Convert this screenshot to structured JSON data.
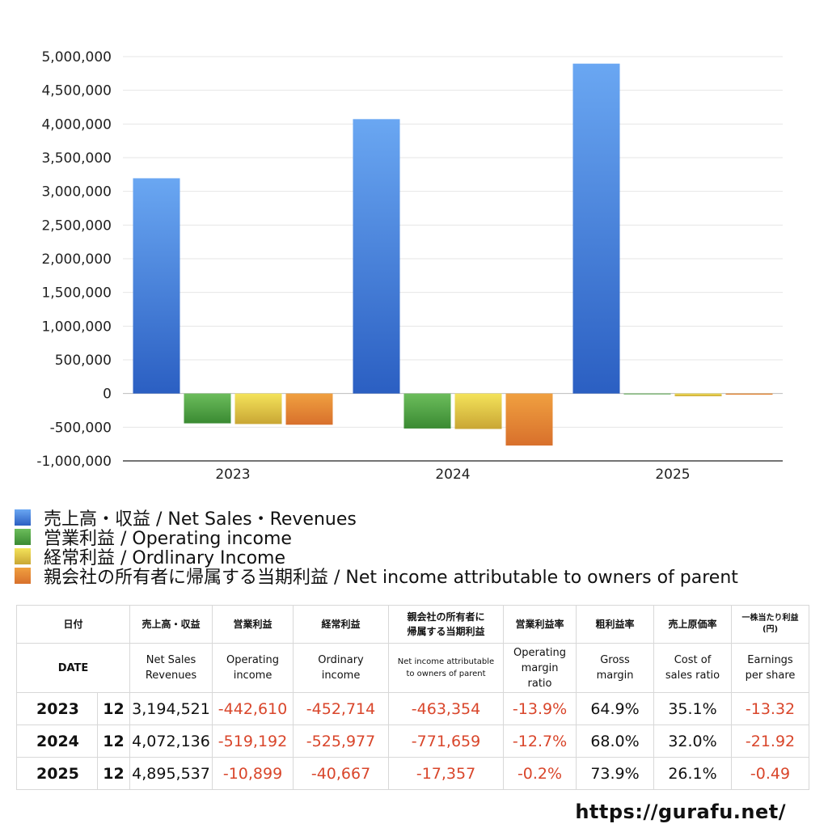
{
  "chart_data": {
    "type": "bar",
    "categories": [
      "2023",
      "2024",
      "2025"
    ],
    "series": [
      {
        "name": "売上高・収益 / Net Sales・Revenues",
        "values": [
          3194521,
          4072136,
          4895537
        ],
        "color_top": "#6aa7f2",
        "color_bottom": "#2b5fc2"
      },
      {
        "name": "営業利益 / Operating income",
        "values": [
          -442610,
          -519192,
          -10899
        ],
        "color_top": "#6cbd5c",
        "color_bottom": "#3a8a32"
      },
      {
        "name": "経常利益 / Ordlinary Income",
        "values": [
          -452714,
          -525977,
          -40667
        ],
        "color_top": "#f4e35a",
        "color_bottom": "#c9a634"
      },
      {
        "name": "親会社の所有者に帰属する当期利益 / Net income attributable to owners of parent",
        "values": [
          -463354,
          -771659,
          -17357
        ],
        "color_top": "#f0a040",
        "color_bottom": "#d8702c"
      }
    ],
    "ylim": [
      -1000000,
      5000000
    ],
    "yticks": [
      -1000000,
      -500000,
      0,
      500000,
      1000000,
      1500000,
      2000000,
      2500000,
      3000000,
      3500000,
      4000000,
      4500000,
      5000000
    ],
    "ytick_labels": [
      "-1,000,000",
      "-500,000",
      "0",
      "500,000",
      "1,000,000",
      "1,500,000",
      "2,000,000",
      "2,500,000",
      "3,000,000",
      "3,500,000",
      "4,000,000",
      "4,500,000",
      "5,000,000"
    ],
    "grid": true,
    "legend_position": "bottom-left"
  },
  "table": {
    "header_jp": {
      "date": "日付",
      "net_sales": "売上高・収益",
      "operating_income": "営業利益",
      "ordinary_income": "経常利益",
      "net_income_line1": "親会社の所有者に",
      "net_income_line2": "帰属する当期利益",
      "operating_margin": "営業利益率",
      "gross_margin": "粗利益率",
      "cost_ratio": "売上原価率",
      "eps_line1": "一株当たり利益",
      "eps_line2": "(円)"
    },
    "header_en": {
      "date": "DATE",
      "net_sales_line1": "Net Sales",
      "net_sales_line2": "Revenues",
      "operating_income_line1": "Operating",
      "operating_income_line2": "income",
      "ordinary_income_line1": "Ordinary",
      "ordinary_income_line2": "income",
      "net_income_line1": "Net income attributable",
      "net_income_line2": "to owners of parent",
      "operating_margin_line1": "Operating",
      "operating_margin_line2": "margin",
      "operating_margin_line3": "ratio",
      "gross_margin_line1": "Gross",
      "gross_margin_line2": "margin",
      "cost_ratio_line1": "Cost of",
      "cost_ratio_line2": "sales ratio",
      "eps_line1": "Earnings",
      "eps_line2": "per share"
    },
    "rows": [
      {
        "year": "2023",
        "month": "12",
        "net_sales": "3,194,521",
        "operating_income": "-442,610",
        "ordinary_income": "-452,714",
        "net_income": "-463,354",
        "operating_margin": "-13.9%",
        "gross_margin": "64.9%",
        "cost_ratio": "35.1%",
        "eps": "-13.32"
      },
      {
        "year": "2024",
        "month": "12",
        "net_sales": "4,072,136",
        "operating_income": "-519,192",
        "ordinary_income": "-525,977",
        "net_income": "-771,659",
        "operating_margin": "-12.7%",
        "gross_margin": "68.0%",
        "cost_ratio": "32.0%",
        "eps": "-21.92"
      },
      {
        "year": "2025",
        "month": "12",
        "net_sales": "4,895,537",
        "operating_income": "-10,899",
        "ordinary_income": "-40,667",
        "net_income": "-17,357",
        "operating_margin": "-0.2%",
        "gross_margin": "73.9%",
        "cost_ratio": "26.1%",
        "eps": "-0.49"
      }
    ]
  },
  "footer": {
    "url": "https://gurafu.net/"
  }
}
